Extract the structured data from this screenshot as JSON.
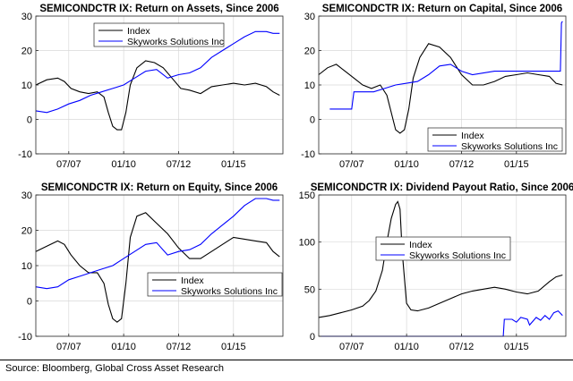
{
  "colors": {
    "index": "#000000",
    "company": "#0000ff",
    "axis": "#262626",
    "grid": "#d9d9d9"
  },
  "source": "Source: Bloomberg, Global Cross Asset Research",
  "chart_data": [
    {
      "type": "line",
      "title": "SEMICONDCTR IX: Return on Assets, Since 2006",
      "xlabel": "",
      "ylabel": "",
      "xlim": [
        2006.0,
        2017.25
      ],
      "ylim": [
        -10,
        30
      ],
      "yticks": [
        -10,
        0,
        10,
        20,
        30
      ],
      "xticks": [
        2007.5,
        2010.0,
        2012.5,
        2015.0
      ],
      "xtick_labels": [
        "07/07",
        "01/10",
        "07/12",
        "01/15"
      ],
      "grid": true,
      "legend": "top-center",
      "series": [
        {
          "name": "Index",
          "color": "#000000",
          "x": [
            2006.0,
            2006.5,
            2007.0,
            2007.3,
            2007.6,
            2008.0,
            2008.4,
            2008.8,
            2009.1,
            2009.3,
            2009.5,
            2009.7,
            2009.9,
            2010.1,
            2010.3,
            2010.6,
            2011.0,
            2011.4,
            2011.8,
            2012.2,
            2012.6,
            2013.0,
            2013.5,
            2014.0,
            2014.5,
            2015.0,
            2015.5,
            2016.0,
            2016.5,
            2016.8,
            2017.1
          ],
          "y": [
            10,
            11.5,
            12,
            11,
            9,
            8,
            7.5,
            8,
            6.5,
            2,
            -2,
            -3,
            -3,
            2,
            10,
            15,
            17,
            16.5,
            15,
            12,
            9,
            8.5,
            7.5,
            9.5,
            10,
            10.5,
            10,
            10.5,
            9.5,
            8,
            7
          ]
        },
        {
          "name": "Skyworks Solutions Inc",
          "color": "#0000ff",
          "x": [
            2006.0,
            2006.5,
            2007.0,
            2007.5,
            2008.0,
            2008.5,
            2009.0,
            2009.5,
            2010.0,
            2010.5,
            2011.0,
            2011.5,
            2012.0,
            2012.5,
            2013.0,
            2013.5,
            2014.0,
            2014.5,
            2015.0,
            2015.5,
            2016.0,
            2016.5,
            2016.8,
            2017.1
          ],
          "y": [
            2.5,
            2,
            3,
            4.5,
            5.5,
            7,
            8,
            9,
            10,
            12,
            14,
            14.5,
            12,
            13,
            13.5,
            15,
            18,
            20,
            22,
            24,
            25.5,
            25.5,
            25,
            25
          ]
        }
      ]
    },
    {
      "type": "line",
      "title": "SEMICONDCTR IX: Return on Capital, Since 2006",
      "xlabel": "",
      "ylabel": "",
      "xlim": [
        2006.0,
        2017.25
      ],
      "ylim": [
        -10,
        30
      ],
      "yticks": [
        -10,
        0,
        10,
        20,
        30
      ],
      "xticks": [
        2007.5,
        2010.0,
        2012.5,
        2015.0
      ],
      "xtick_labels": [
        "07/07",
        "01/10",
        "07/12",
        "01/15"
      ],
      "grid": true,
      "legend": "bottom-right",
      "series": [
        {
          "name": "Index",
          "color": "#000000",
          "x": [
            2006.0,
            2006.4,
            2006.8,
            2007.2,
            2007.6,
            2008.0,
            2008.4,
            2008.8,
            2009.1,
            2009.3,
            2009.5,
            2009.7,
            2009.9,
            2010.1,
            2010.3,
            2010.6,
            2011.0,
            2011.5,
            2012.0,
            2012.5,
            2013.0,
            2013.5,
            2014.0,
            2014.5,
            2015.0,
            2015.5,
            2016.0,
            2016.5,
            2016.8,
            2017.1
          ],
          "y": [
            13,
            15,
            16,
            14,
            12,
            10,
            9,
            10,
            7,
            2,
            -3,
            -4,
            -3,
            3,
            12,
            18,
            22,
            21,
            18,
            13,
            10,
            10,
            11,
            12.5,
            13,
            13.5,
            13,
            12.5,
            10.5,
            10
          ]
        },
        {
          "name": "Skyworks Solutions Inc",
          "color": "#0000ff",
          "x": [
            2006.5,
            2007.5,
            2007.6,
            2008.5,
            2009.0,
            2009.5,
            2010.0,
            2010.5,
            2011.0,
            2011.5,
            2012.0,
            2012.5,
            2013.0,
            2014.0,
            2015.0,
            2016.0,
            2017.0,
            2017.05,
            2017.1
          ],
          "y": [
            3,
            3,
            8,
            8,
            9,
            10,
            10.5,
            11,
            13,
            15.5,
            16,
            14,
            13,
            14,
            14,
            14,
            14,
            28,
            28.5
          ]
        }
      ]
    },
    {
      "type": "line",
      "title": "SEMICONDCTR IX: Return on Equity, Since 2006",
      "xlabel": "",
      "ylabel": "",
      "xlim": [
        2006.0,
        2017.25
      ],
      "ylim": [
        -10,
        30
      ],
      "yticks": [
        -10,
        0,
        10,
        20,
        30
      ],
      "xticks": [
        2007.5,
        2010.0,
        2012.5,
        2015.0
      ],
      "xtick_labels": [
        "07/07",
        "01/10",
        "07/12",
        "01/15"
      ],
      "grid": true,
      "legend": "bottom-right",
      "series": [
        {
          "name": "Index",
          "color": "#000000",
          "x": [
            2006.0,
            2006.5,
            2007.0,
            2007.3,
            2007.6,
            2008.0,
            2008.4,
            2008.8,
            2009.1,
            2009.3,
            2009.5,
            2009.7,
            2009.9,
            2010.1,
            2010.3,
            2010.6,
            2011.0,
            2011.5,
            2012.0,
            2012.5,
            2013.0,
            2013.5,
            2014.0,
            2014.5,
            2015.0,
            2015.5,
            2016.0,
            2016.5,
            2016.8,
            2017.1
          ],
          "y": [
            14,
            15.5,
            17,
            16,
            13,
            10,
            8,
            8,
            5,
            -1,
            -5,
            -6,
            -5,
            5,
            18,
            24,
            25,
            22,
            19,
            15,
            12,
            12,
            14,
            16,
            18,
            17.5,
            17,
            16.5,
            14,
            12.5
          ]
        },
        {
          "name": "Skyworks Solutions Inc",
          "color": "#0000ff",
          "x": [
            2006.0,
            2006.5,
            2007.0,
            2007.5,
            2008.0,
            2008.5,
            2009.0,
            2009.5,
            2010.0,
            2010.5,
            2011.0,
            2011.5,
            2012.0,
            2012.5,
            2013.0,
            2013.5,
            2014.0,
            2014.5,
            2015.0,
            2015.5,
            2016.0,
            2016.5,
            2016.8,
            2017.1
          ],
          "y": [
            4,
            3.5,
            4,
            6,
            7,
            8,
            9,
            10,
            12,
            14,
            16,
            16.5,
            13,
            14,
            14.5,
            16,
            19,
            21.5,
            24,
            27,
            29,
            29,
            28.5,
            28.5
          ]
        }
      ]
    },
    {
      "type": "line",
      "title": "SEMICONDCTR IX: Dividend Payout Ratio, Since 2006",
      "xlabel": "",
      "ylabel": "",
      "xlim": [
        2006.0,
        2017.25
      ],
      "ylim": [
        0,
        150
      ],
      "yticks": [
        0,
        50,
        100,
        150
      ],
      "xticks": [
        2007.5,
        2010.0,
        2012.5,
        2015.0
      ],
      "xtick_labels": [
        "07/07",
        "01/10",
        "07/12",
        "01/15"
      ],
      "grid": true,
      "legend": "top-center",
      "series": [
        {
          "name": "Index",
          "color": "#000000",
          "x": [
            2006.0,
            2006.5,
            2007.0,
            2007.5,
            2008.0,
            2008.3,
            2008.6,
            2008.9,
            2009.1,
            2009.3,
            2009.5,
            2009.6,
            2009.7,
            2009.8,
            2010.0,
            2010.2,
            2010.5,
            2011.0,
            2011.5,
            2012.0,
            2012.5,
            2013.0,
            2013.5,
            2014.0,
            2014.5,
            2015.0,
            2015.5,
            2016.0,
            2016.5,
            2016.8,
            2017.1
          ],
          "y": [
            20,
            22,
            25,
            28,
            32,
            38,
            48,
            70,
            100,
            125,
            140,
            143,
            135,
            90,
            35,
            28,
            27,
            30,
            35,
            40,
            45,
            48,
            50,
            52,
            50,
            47,
            45,
            48,
            58,
            63,
            65
          ]
        },
        {
          "name": "Skyworks Solutions Inc",
          "color": "#0000ff",
          "x": [
            2006.0,
            2014.4,
            2014.45,
            2014.8,
            2015.0,
            2015.2,
            2015.5,
            2015.6,
            2015.9,
            2016.1,
            2016.3,
            2016.5,
            2016.7,
            2016.9,
            2017.1
          ],
          "y": [
            0,
            0,
            18,
            18,
            15,
            20,
            18,
            12,
            20,
            17,
            22,
            18,
            25,
            27,
            22
          ]
        }
      ]
    }
  ]
}
